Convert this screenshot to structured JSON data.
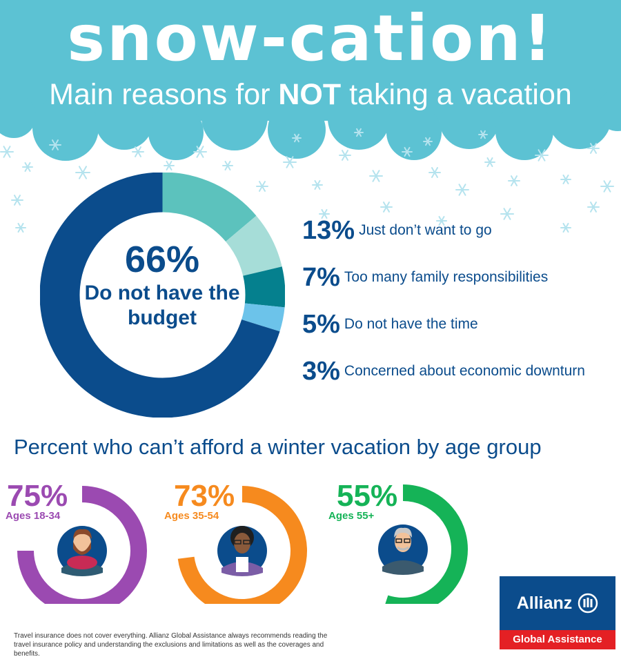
{
  "header": {
    "title": "snow-cation!",
    "subtitle_before": "Main reasons for ",
    "subtitle_bold": "NOT",
    "subtitle_after": " taking a vacation"
  },
  "chart_data": [
    {
      "type": "pie",
      "categories": [
        "Do not have the budget",
        "Just don’t want to go",
        "Too many family responsibilities",
        "Do not have the time",
        "Concerned about economic downturn"
      ],
      "values": [
        66,
        13,
        7,
        5,
        3
      ],
      "labels": [
        "66%",
        "13%",
        "7%",
        "5%",
        "3%"
      ],
      "center_value": "66%",
      "center_label": "Do not have the budget",
      "colors": [
        "#0b4c8c",
        "#5cc2bd",
        "#a6ddd8",
        "#05808e",
        "#6cc3ea"
      ]
    },
    {
      "type": "pie",
      "title": "Percent who can’t afford a winter vacation by age group",
      "categories": [
        "Ages 18-34",
        "Ages 35-54",
        "Ages 55+"
      ],
      "values": [
        75,
        73,
        55
      ],
      "labels": [
        "75%",
        "73%",
        "55%"
      ],
      "colors": [
        "#9b4ab1",
        "#f68a1e",
        "#15b357"
      ]
    }
  ],
  "logo": {
    "brand": "Allianz",
    "division": "Global Assistance",
    "icon": "allianz-eagle-icon",
    "colors": {
      "blue": "#0b4c8c",
      "red": "#e42024"
    }
  },
  "disclaimer": "Travel insurance does not cover everything. Allianz Global Assistance always recommends reading the travel insurance policy and understanding the exclusions and limitations as well as the coverages and benefits.",
  "icons": [
    "snowflake-icon",
    "young-man-avatar-icon",
    "woman-avatar-icon",
    "senior-man-avatar-icon"
  ],
  "theme": {
    "cloud": "#5cc2d3",
    "snowflake": "#b5e3ee"
  }
}
